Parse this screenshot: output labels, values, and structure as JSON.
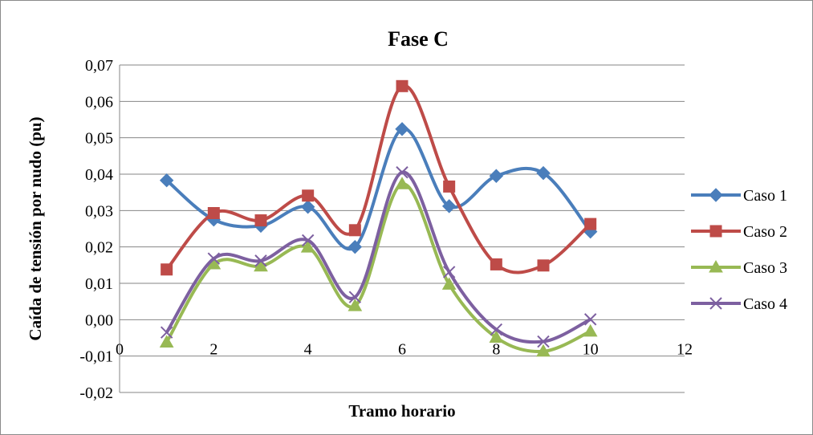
{
  "chart_data": {
    "type": "line",
    "title": "Fase C",
    "xlabel": "Tramo horario",
    "ylabel": "Caída de tensión por nudo (pu)",
    "xlim": [
      0,
      12
    ],
    "ylim": [
      -0.02,
      0.07
    ],
    "x_ticks": [
      "0",
      "2",
      "4",
      "6",
      "8",
      "10",
      "12"
    ],
    "y_ticks": [
      "-0,02",
      "-0,01",
      "0,00",
      "0,01",
      "0,02",
      "0,03",
      "0,04",
      "0,05",
      "0,06",
      "0,07"
    ],
    "grid": "horizontal",
    "legend_position": "right",
    "smooth": true,
    "x": [
      1,
      2,
      3,
      4,
      5,
      6,
      7,
      8,
      9,
      10
    ],
    "series": [
      {
        "name": "Caso 1",
        "color": "#4a7ebb",
        "marker": "diamond",
        "values": [
          0.0383,
          0.0275,
          0.0258,
          0.031,
          0.02,
          0.0524,
          0.0312,
          0.0395,
          0.0403,
          0.0242
        ]
      },
      {
        "name": "Caso 2",
        "color": "#be4b48",
        "marker": "square",
        "values": [
          0.0138,
          0.0293,
          0.0273,
          0.0341,
          0.0246,
          0.0642,
          0.0366,
          0.0152,
          0.0149,
          0.0263
        ]
      },
      {
        "name": "Caso 3",
        "color": "#98b954",
        "marker": "triangle",
        "values": [
          -0.0062,
          0.0153,
          0.0147,
          0.0199,
          0.0038,
          0.0373,
          0.0097,
          -0.0049,
          -0.0087,
          -0.0032
        ]
      },
      {
        "name": "Caso 4",
        "color": "#7d60a0",
        "marker": "x",
        "values": [
          -0.0035,
          0.0168,
          0.0162,
          0.0218,
          0.0062,
          0.0405,
          0.0131,
          -0.0027,
          -0.006,
          0.0001
        ]
      }
    ]
  }
}
